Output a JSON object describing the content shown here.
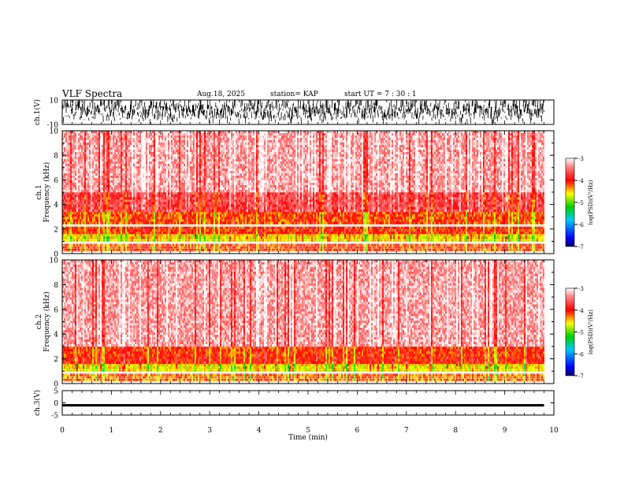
{
  "header": {
    "title": "VLF Spectra",
    "date": "Aug.18, 2025",
    "station": "station= KAP",
    "start_ut": "start  UT =   7 : 30 : 1"
  },
  "colors": {
    "axis": "#000000",
    "background": "#ffffff",
    "waveform": "#000000"
  },
  "chart_data": [
    {
      "type": "line",
      "name": "ch1-waveform",
      "ylabel": "ch.1(V)",
      "ylim": [
        -10,
        10
      ],
      "yticks": [
        "10",
        "-10"
      ],
      "xlim": [
        0,
        10
      ],
      "description_values": {
        "amplitude_range": [
          -10,
          10
        ],
        "data_end_min": 9.8
      }
    },
    {
      "type": "heatmap",
      "name": "ch1-spectrogram",
      "ylabel": "Frequency  (kHz)",
      "ylabel2": "ch.1",
      "ylim": [
        0,
        10
      ],
      "yticks": [
        "0",
        "2",
        "4",
        "6",
        "8",
        "10"
      ],
      "xlim": [
        0,
        10
      ],
      "data_end_min": 9.8,
      "colorbar": {
        "label": "log(PSD)(V²/Hz)",
        "range": [
          -7,
          -3
        ],
        "ticks": [
          "-3",
          "-4",
          "-5",
          "-6",
          "-7"
        ]
      },
      "bands_khz": [
        {
          "range": [
            0.2,
            0.8
          ],
          "level": -4.2
        },
        {
          "range": [
            1.0,
            1.6
          ],
          "level": -4.6
        },
        {
          "range": [
            1.6,
            2.2
          ],
          "level": -4.1
        },
        {
          "range": [
            2.4,
            3.4
          ],
          "level": -4.2
        },
        {
          "range": [
            3.4,
            5.0
          ],
          "level": -3.7
        },
        {
          "range": [
            5.0,
            10.0
          ],
          "level": -3.3
        }
      ]
    },
    {
      "type": "heatmap",
      "name": "ch2-spectrogram",
      "ylabel": "Frequency  (kHz)",
      "ylabel2": "ch.2",
      "ylim": [
        0,
        10
      ],
      "yticks": [
        "0",
        "2",
        "4",
        "6",
        "8",
        "10"
      ],
      "xlim": [
        0,
        10
      ],
      "data_end_min": 9.8,
      "colorbar": {
        "label": "log(PSD)(V²/Hz)",
        "range": [
          -7,
          -3
        ],
        "ticks": [
          "-3",
          "-4",
          "-5",
          "-6",
          "-7"
        ]
      },
      "bands_khz": [
        {
          "range": [
            0.2,
            0.8
          ],
          "level": -4.3
        },
        {
          "range": [
            1.0,
            1.6
          ],
          "level": -4.6
        },
        {
          "range": [
            1.6,
            2.2
          ],
          "level": -4.0
        },
        {
          "range": [
            2.2,
            3.0
          ],
          "level": -4.1
        },
        {
          "range": [
            3.0,
            10.0
          ],
          "level": -3.3
        }
      ]
    },
    {
      "type": "line",
      "name": "ch3-waveform",
      "ylabel": "ch.3(V)",
      "ylim": [
        -5,
        5
      ],
      "yticks": [
        "5",
        "0",
        "-5"
      ],
      "xlim": [
        0,
        10
      ],
      "description_values": {
        "amplitude_range": [
          -1.5,
          -0.5
        ],
        "data_end_min": 9.8
      }
    }
  ],
  "xaxis": {
    "label": "Time  (min)",
    "ticks": [
      "0",
      "1",
      "2",
      "3",
      "4",
      "5",
      "6",
      "7",
      "8",
      "9",
      "10"
    ]
  }
}
